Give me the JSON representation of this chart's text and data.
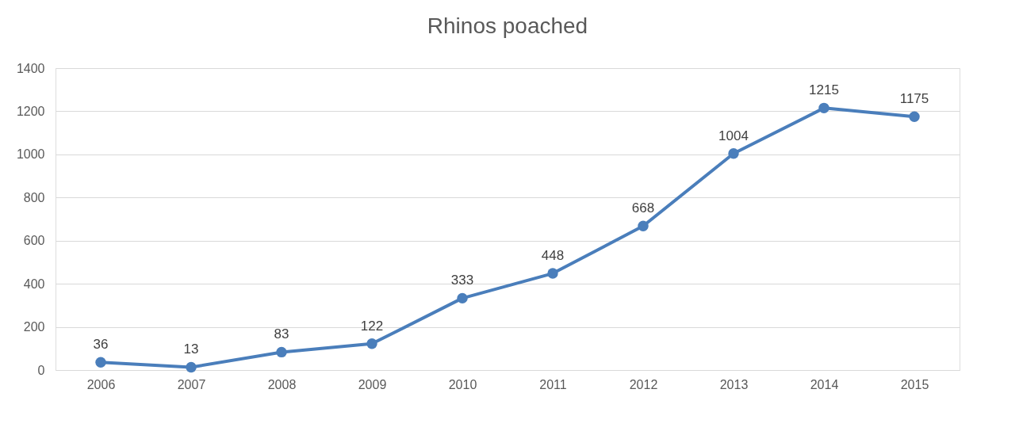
{
  "chart_data": {
    "type": "line",
    "title": "Rhinos poached",
    "categories": [
      "2006",
      "2007",
      "2008",
      "2009",
      "2010",
      "2011",
      "2012",
      "2013",
      "2014",
      "2015"
    ],
    "series": [
      {
        "color": "#4a7ebb",
        "values": [
          36,
          13,
          83,
          122,
          333,
          448,
          668,
          1004,
          1215,
          1175
        ]
      }
    ],
    "ylim": [
      0,
      1400
    ],
    "yticks": [
      0,
      200,
      400,
      600,
      800,
      1000,
      1200,
      1400
    ],
    "grid": "y",
    "marker": "circle",
    "line_style": "solid",
    "data_labels": true
  }
}
